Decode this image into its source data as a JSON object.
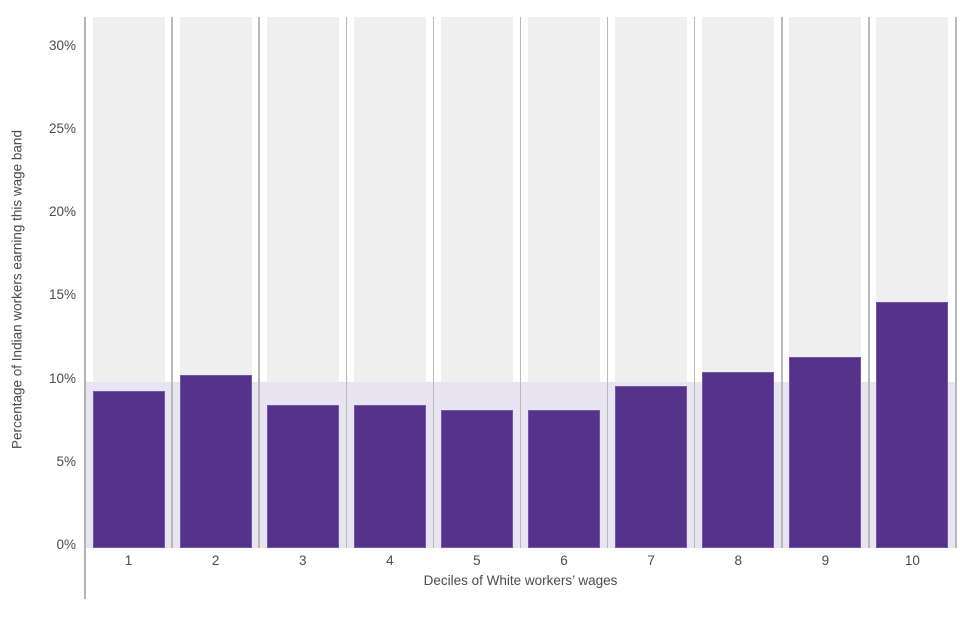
{
  "chart_data": {
    "type": "bar",
    "title": "",
    "categories": [
      "1",
      "2",
      "3",
      "4",
      "5",
      "6",
      "7",
      "8",
      "9",
      "10"
    ],
    "values": [
      9.4,
      10.4,
      8.6,
      8.6,
      8.3,
      8.3,
      9.7,
      10.6,
      11.5,
      14.8
    ],
    "xlabel": "Deciles of White workers’ wages",
    "ylabel": "Percentage of Indian workers earning this wage band",
    "ylim": [
      0,
      31.8
    ],
    "yticks": [
      {
        "value": 0,
        "label": "0%"
      },
      {
        "value": 5,
        "label": "5%"
      },
      {
        "value": 10,
        "label": "10%"
      },
      {
        "value": 15,
        "label": "15%"
      },
      {
        "value": 20,
        "label": "20%"
      },
      {
        "value": 25,
        "label": "25%"
      },
      {
        "value": 30,
        "label": "30%"
      }
    ],
    "reference_band": {
      "from": 0,
      "to": 10
    },
    "legend": "none",
    "grid": "vertical-column-separators-only",
    "colors": {
      "bar": "#56338b",
      "reference_band": "#e9e4f2",
      "column_background": "#efefef",
      "separator_line": "#b9b9b9",
      "axis_line": "#b3b3b3",
      "text": "#4c4c4c"
    }
  }
}
